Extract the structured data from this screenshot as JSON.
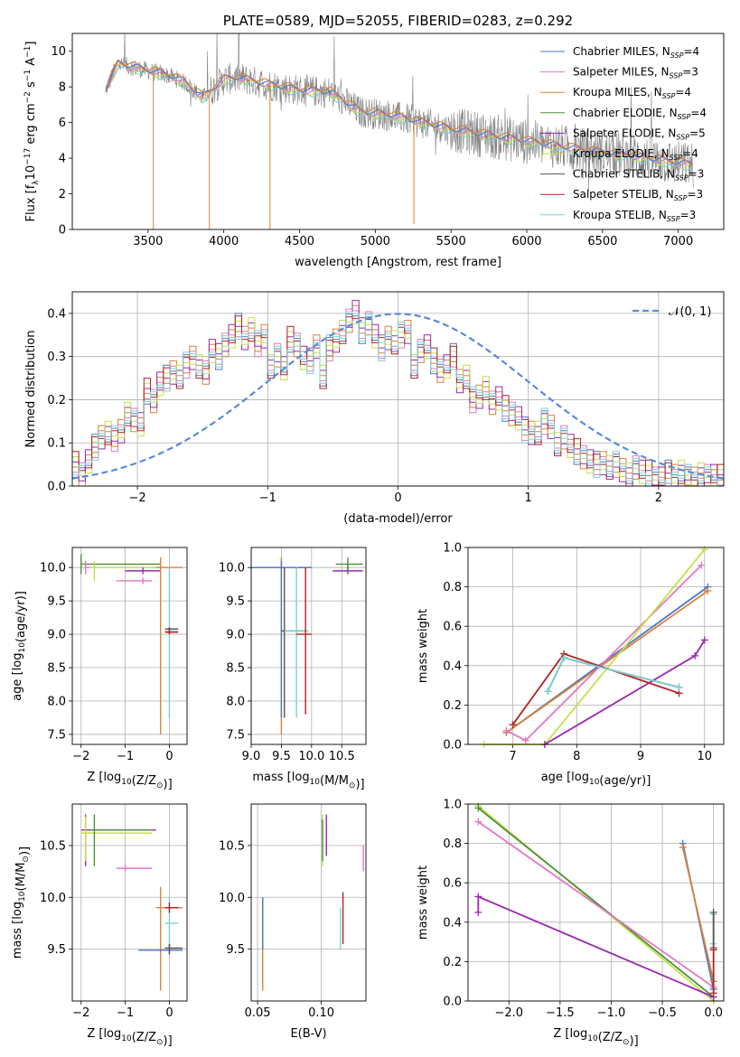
{
  "colors": {
    "c1": "#4a78c4",
    "c2": "#e377c2",
    "c3": "#d9823b",
    "c4": "#4f8f3a",
    "c5": "#9b27b0",
    "c6": "#c5e04a",
    "c7": "#555555",
    "c8": "#b22222",
    "c9": "#7fcfd1",
    "normal": "#5b8ad8",
    "grid": "#b0b0b0",
    "data": "#808080"
  },
  "chart_data": [
    {
      "id": "spectrum",
      "type": "line",
      "title": "PLATE=0589, MJD=52055, FIBERID=0283, z=0.292",
      "xlabel": "wavelength [Angstrom, rest frame]",
      "ylabel_parts": [
        "Flux [f",
        "λ",
        "10",
        "−17",
        " erg cm",
        "−2",
        " s",
        "−1",
        " A",
        "−1",
        "]"
      ],
      "xlim": [
        3000,
        7300
      ],
      "ylim": [
        0,
        11
      ],
      "xticks": [
        "3500",
        "4000",
        "4500",
        "5000",
        "5500",
        "6000",
        "6500",
        "7000"
      ],
      "yticks": [
        "0",
        "2",
        "4",
        "6",
        "8",
        "10"
      ],
      "grid": false,
      "legend_position": "top-right",
      "legend": [
        {
          "label": "Chabrier MILES, N",
          "sub": "SSP",
          "tail": "=4",
          "color": "c1"
        },
        {
          "label": "Salpeter MILES, N",
          "sub": "SSP",
          "tail": "=3",
          "color": "c2"
        },
        {
          "label": "Kroupa MILES, N",
          "sub": "SSP",
          "tail": "=4",
          "color": "c3"
        },
        {
          "label": "Chabrier ELODIE, N",
          "sub": "SSP",
          "tail": "=4",
          "color": "c4"
        },
        {
          "label": "Salpeter ELODIE, N",
          "sub": "SSP",
          "tail": "=5",
          "color": "c5"
        },
        {
          "label": "Kroupa ELODIE, N",
          "sub": "SSP",
          "tail": "=4",
          "color": "c6"
        },
        {
          "label": "Chabrier STELIB, N",
          "sub": "SSP",
          "tail": "=3",
          "color": "c7"
        },
        {
          "label": "Salpeter STELIB, N",
          "sub": "SSP",
          "tail": "=3",
          "color": "c8"
        },
        {
          "label": "Kroupa STELIB, N",
          "sub": "SSP",
          "tail": "=3",
          "color": "c9"
        }
      ],
      "continuum": [
        [
          3220,
          7.8
        ],
        [
          3300,
          9.3
        ],
        [
          3500,
          8.9
        ],
        [
          3650,
          8.6
        ],
        [
          3750,
          8.2
        ],
        [
          3860,
          7.4
        ],
        [
          3920,
          7.8
        ],
        [
          4000,
          8.4
        ],
        [
          4100,
          8.5
        ],
        [
          4300,
          8.1
        ],
        [
          4500,
          7.8
        ],
        [
          4700,
          7.7
        ],
        [
          4900,
          6.6
        ],
        [
          5100,
          6.4
        ],
        [
          5300,
          6.0
        ],
        [
          5500,
          5.6
        ],
        [
          5800,
          5.2
        ],
        [
          6100,
          4.8
        ],
        [
          6400,
          4.4
        ],
        [
          6700,
          4.1
        ],
        [
          7000,
          3.7
        ],
        [
          7100,
          3.6
        ]
      ],
      "absorption_lines": [
        [
          3535,
          0
        ],
        [
          3905,
          0
        ],
        [
          4305,
          0
        ],
        [
          5255,
          0.3
        ]
      ]
    },
    {
      "id": "residuals",
      "type": "line",
      "xlabel": "(data-model)/error",
      "ylabel": "Normed distribution",
      "xlim": [
        -2.5,
        2.5
      ],
      "ylim": [
        0,
        0.45
      ],
      "xticks": [
        "−2",
        "−1",
        "0",
        "1",
        "2"
      ],
      "yticks": [
        "0.0",
        "0.1",
        "0.2",
        "0.3",
        "0.4"
      ],
      "grid": true,
      "legend_position": "top-right",
      "legend": [
        {
          "label": "𝒩(0, 1)",
          "color": "normal"
        }
      ],
      "bin_width": 0.1,
      "bin_start": -2.5,
      "hist_values": [
        0.05,
        0.03,
        0.06,
        0.09,
        0.11,
        0.12,
        0.11,
        0.13,
        0.17,
        0.15,
        0.14,
        0.22,
        0.2,
        0.24,
        0.25,
        0.26,
        0.25,
        0.28,
        0.3,
        0.28,
        0.26,
        0.31,
        0.3,
        0.33,
        0.35,
        0.37,
        0.34,
        0.36,
        0.33,
        0.35,
        0.28,
        0.3,
        0.27,
        0.34,
        0.33,
        0.3,
        0.29,
        0.32,
        0.25,
        0.32,
        0.34,
        0.36,
        0.38,
        0.4,
        0.36,
        0.38,
        0.35,
        0.32,
        0.34,
        0.33,
        0.35,
        0.36,
        0.28,
        0.31,
        0.32,
        0.29,
        0.27,
        0.28,
        0.3,
        0.24,
        0.25,
        0.2,
        0.21,
        0.23,
        0.19,
        0.2,
        0.18,
        0.17,
        0.16,
        0.13,
        0.12,
        0.12,
        0.15,
        0.14,
        0.1,
        0.11,
        0.09,
        0.08,
        0.07,
        0.06,
        0.05,
        0.05,
        0.04,
        0.05,
        0.04,
        0.03,
        0.04,
        0.03,
        0.03,
        0.02,
        0.02,
        0.03,
        0.02,
        0.03,
        0.02,
        0.02,
        0.03,
        0.02,
        0.02,
        0.02
      ]
    },
    {
      "id": "age-vs-Z",
      "type": "scatter",
      "xlabel": "Z [log10(Z/Z⊙)]",
      "ylabel": "age  [log10(age/yr)]",
      "xlim": [
        -2.2,
        0.4
      ],
      "ylim": [
        7.35,
        10.3
      ],
      "xticks": [
        "−2",
        "−1",
        "0"
      ],
      "yticks": [
        "7.5",
        "8.0",
        "8.5",
        "9.0",
        "9.5",
        "10.0"
      ],
      "grid": true,
      "points": [
        {
          "x": -2.0,
          "y": 10.05,
          "xlo": -2.0,
          "xhi": -0.2,
          "ylo": 9.9,
          "yhi": 10.2,
          "color": "c4"
        },
        {
          "x": -1.9,
          "y": 10.0,
          "xlo": -1.9,
          "xhi": -0.2,
          "ylo": 9.9,
          "yhi": 10.1,
          "color": "c2"
        },
        {
          "x": -1.7,
          "y": 10.0,
          "xlo": -1.8,
          "xhi": 0.0,
          "ylo": 9.8,
          "yhi": 10.1,
          "color": "c6"
        },
        {
          "x": -0.6,
          "y": 9.8,
          "xlo": -1.2,
          "xhi": -0.4,
          "ylo": 9.75,
          "yhi": 9.85,
          "color": "c2"
        },
        {
          "x": -0.6,
          "y": 9.95,
          "xlo": -1.0,
          "xhi": -0.2,
          "ylo": 9.9,
          "yhi": 10.0,
          "color": "c5"
        },
        {
          "x": -0.2,
          "y": 10.0,
          "xlo": -0.3,
          "xhi": 0.3,
          "ylo": 7.5,
          "yhi": 10.15,
          "color": "c3"
        },
        {
          "x": 0.0,
          "y": 9.05,
          "xlo": -0.1,
          "xhi": 0.2,
          "ylo": 7.75,
          "yhi": 10.0,
          "color": "c9"
        },
        {
          "x": 0.0,
          "y": 9.08,
          "xlo": -0.1,
          "xhi": 0.2,
          "ylo": 9.0,
          "yhi": 9.1,
          "color": "c7"
        },
        {
          "x": 0.0,
          "y": 9.03,
          "xlo": -0.1,
          "xhi": 0.2,
          "ylo": 9.0,
          "yhi": 9.1,
          "color": "c8"
        }
      ]
    },
    {
      "id": "age-vs-mass",
      "type": "scatter",
      "xlabel": "mass [log10(M/M⊙)]",
      "xlim": [
        9.0,
        10.9
      ],
      "ylim": [
        7.35,
        10.3
      ],
      "xticks": [
        "9.0",
        "9.5",
        "10.0",
        "10.5"
      ],
      "yticks": [
        "7.5",
        "8.0",
        "8.5",
        "9.0",
        "9.5",
        "10.0"
      ],
      "grid": true,
      "points": [
        {
          "x": 9.5,
          "y": 10.0,
          "xlo": 9.0,
          "xhi": 10.0,
          "ylo": 7.5,
          "yhi": 10.15,
          "color": "c3"
        },
        {
          "x": 9.5,
          "y": 10.0,
          "xlo": 9.0,
          "xhi": 10.0,
          "ylo": 7.75,
          "yhi": 10.1,
          "color": "c1"
        },
        {
          "x": 9.55,
          "y": 9.05,
          "xlo": 9.5,
          "xhi": 9.9,
          "ylo": 7.75,
          "yhi": 10.0,
          "color": "c7"
        },
        {
          "x": 9.75,
          "y": 9.05,
          "xlo": 9.55,
          "xhi": 9.95,
          "ylo": 7.75,
          "yhi": 10.0,
          "color": "c9"
        },
        {
          "x": 9.9,
          "y": 9.0,
          "xlo": 9.75,
          "xhi": 10.0,
          "ylo": 7.8,
          "yhi": 10.0,
          "color": "c8"
        },
        {
          "x": 10.6,
          "y": 9.95,
          "xlo": 10.35,
          "xhi": 10.85,
          "ylo": 9.9,
          "yhi": 10.05,
          "color": "c5"
        },
        {
          "x": 10.6,
          "y": 10.05,
          "xlo": 10.4,
          "xhi": 10.85,
          "ylo": 9.95,
          "yhi": 10.15,
          "color": "c4"
        }
      ]
    },
    {
      "id": "weight-vs-age",
      "type": "line",
      "xlabel": "age  [log10(age/yr)]",
      "ylabel": "mass weight",
      "xlim": [
        6.3,
        10.3
      ],
      "ylim": [
        0,
        1.0
      ],
      "xticks": [
        "7",
        "8",
        "9",
        "10"
      ],
      "yticks": [
        "0.0",
        "0.2",
        "0.4",
        "0.6",
        "0.8",
        "1.0"
      ],
      "grid": true,
      "series": [
        {
          "color": "c1",
          "x": [
            6.9,
            10.05
          ],
          "y": [
            0.06,
            0.8
          ]
        },
        {
          "color": "c3",
          "x": [
            6.9,
            10.05
          ],
          "y": [
            0.06,
            0.78
          ]
        },
        {
          "color": "c2",
          "x": [
            6.9,
            7.2,
            9.95
          ],
          "y": [
            0.07,
            0.02,
            0.91
          ]
        },
        {
          "color": "c6",
          "x": [
            6.55,
            7.5,
            10.0
          ],
          "y": [
            0.0,
            0.0,
            0.99
          ]
        },
        {
          "color": "c5",
          "x": [
            7.5,
            9.85,
            10.0
          ],
          "y": [
            0.0,
            0.45,
            0.53
          ]
        },
        {
          "color": "c8",
          "x": [
            7.0,
            7.8,
            9.6
          ],
          "y": [
            0.1,
            0.46,
            0.26
          ]
        },
        {
          "color": "c7",
          "x": [
            7.55,
            7.8,
            9.6
          ],
          "y": [
            0.27,
            0.44,
            0.29
          ]
        },
        {
          "color": "c9",
          "x": [
            7.55,
            7.8,
            9.6
          ],
          "y": [
            0.27,
            0.44,
            0.29
          ]
        }
      ]
    },
    {
      "id": "mass-vs-Z",
      "type": "scatter",
      "xlabel": "Z [log10(Z/Z⊙)]",
      "ylabel": "mass [log10(M/M⊙)]",
      "xlim": [
        -2.2,
        0.4
      ],
      "ylim": [
        9.0,
        10.9
      ],
      "xticks": [
        "−2",
        "−1",
        "0"
      ],
      "yticks": [
        "9.5",
        "10.0",
        "10.5"
      ],
      "grid": true,
      "points": [
        {
          "x": -1.9,
          "y": 10.65,
          "xlo": -2.0,
          "xhi": -0.3,
          "ylo": 10.3,
          "yhi": 10.8,
          "color": "c5"
        },
        {
          "x": -1.9,
          "y": 10.62,
          "xlo": -2.0,
          "xhi": -0.4,
          "ylo": 10.35,
          "yhi": 10.78,
          "color": "c6"
        },
        {
          "x": -1.7,
          "y": 10.65,
          "xlo": -1.8,
          "xhi": -0.4,
          "ylo": 10.3,
          "yhi": 10.8,
          "color": "c4"
        },
        {
          "x": -1.0,
          "y": 10.28,
          "xlo": -1.2,
          "xhi": -0.4,
          "ylo": 10.25,
          "yhi": 10.32,
          "color": "c2"
        },
        {
          "x": -0.2,
          "y": 9.9,
          "xlo": -0.3,
          "xhi": 0.3,
          "ylo": 9.1,
          "yhi": 10.1,
          "color": "c3"
        },
        {
          "x": 0.0,
          "y": 9.75,
          "xlo": -0.1,
          "xhi": 0.2,
          "ylo": 9.5,
          "yhi": 10.0,
          "color": "c9"
        },
        {
          "x": 0.0,
          "y": 9.49,
          "xlo": -0.7,
          "xhi": 0.3,
          "ylo": 9.45,
          "yhi": 9.55,
          "color": "c1"
        },
        {
          "x": 0.0,
          "y": 9.51,
          "xlo": -0.1,
          "xhi": 0.3,
          "ylo": 9.45,
          "yhi": 9.55,
          "color": "c7"
        },
        {
          "x": 0.0,
          "y": 9.9,
          "xlo": -0.1,
          "xhi": 0.2,
          "ylo": 9.85,
          "yhi": 9.95,
          "color": "c8"
        }
      ]
    },
    {
      "id": "mass-vs-EBV",
      "type": "scatter",
      "xlabel": "E(B-V)",
      "xlim": [
        0.045,
        0.135
      ],
      "ylim": [
        9.0,
        10.9
      ],
      "xticks": [
        "0.05",
        "0.10"
      ],
      "yticks": [
        "9.5",
        "10.0",
        "10.5"
      ],
      "grid": true,
      "points": [
        {
          "x": 0.054,
          "y": 9.5,
          "ylo": 9.1,
          "yhi": 10.0,
          "color": "c3"
        },
        {
          "x": 0.054,
          "y": 9.95,
          "ylo": 9.5,
          "yhi": 10.0,
          "color": "c1"
        },
        {
          "x": 0.101,
          "y": 10.65,
          "ylo": 10.3,
          "yhi": 10.8,
          "color": "c6"
        },
        {
          "x": 0.101,
          "y": 10.65,
          "ylo": 10.35,
          "yhi": 10.75,
          "color": "c4"
        },
        {
          "x": 0.104,
          "y": 10.6,
          "ylo": 10.4,
          "yhi": 10.8,
          "color": "c5"
        },
        {
          "x": 0.115,
          "y": 9.75,
          "ylo": 9.5,
          "yhi": 9.9,
          "color": "c9"
        },
        {
          "x": 0.117,
          "y": 9.8,
          "ylo": 9.55,
          "yhi": 10.05,
          "color": "c8"
        },
        {
          "x": 0.133,
          "y": 10.4,
          "ylo": 10.25,
          "yhi": 10.5,
          "color": "c2"
        }
      ]
    },
    {
      "id": "weight-vs-Z",
      "type": "line",
      "xlabel": "Z [log10(Z/Z⊙)]",
      "ylabel": "mass weight",
      "xlim": [
        -2.4,
        0.1
      ],
      "ylim": [
        0,
        1.0
      ],
      "xticks": [
        "−2.0",
        "−1.5",
        "−1.0",
        "−0.5",
        "0.0"
      ],
      "yticks": [
        "0.0",
        "0.2",
        "0.4",
        "0.6",
        "0.8",
        "1.0"
      ],
      "grid": true,
      "series": [
        {
          "color": "c6",
          "x": [
            -2.3,
            0.0
          ],
          "y": [
            0.99,
            0.0
          ]
        },
        {
          "color": "c4",
          "x": [
            -2.3,
            0.0
          ],
          "y": [
            0.98,
            0.02
          ]
        },
        {
          "color": "c2",
          "x": [
            -2.3,
            0.0
          ],
          "y": [
            0.91,
            0.07
          ]
        },
        {
          "color": "c5",
          "x": [
            -2.3,
            -2.3,
            0.0
          ],
          "y": [
            0.45,
            0.53,
            0.02
          ]
        },
        {
          "color": "c1",
          "x": [
            -0.3,
            0.0
          ],
          "y": [
            0.8,
            0.06
          ]
        },
        {
          "color": "c3",
          "x": [
            -0.3,
            0.0
          ],
          "y": [
            0.78,
            0.1
          ]
        },
        {
          "color": "c9",
          "x": [
            0.0,
            0.0
          ],
          "y": [
            0.29,
            0.44
          ]
        },
        {
          "color": "c7",
          "x": [
            0.0,
            0.0
          ],
          "y": [
            0.27,
            0.45
          ]
        },
        {
          "color": "c8",
          "x": [
            0.0,
            0.0
          ],
          "y": [
            0.04,
            0.26
          ]
        }
      ]
    }
  ]
}
